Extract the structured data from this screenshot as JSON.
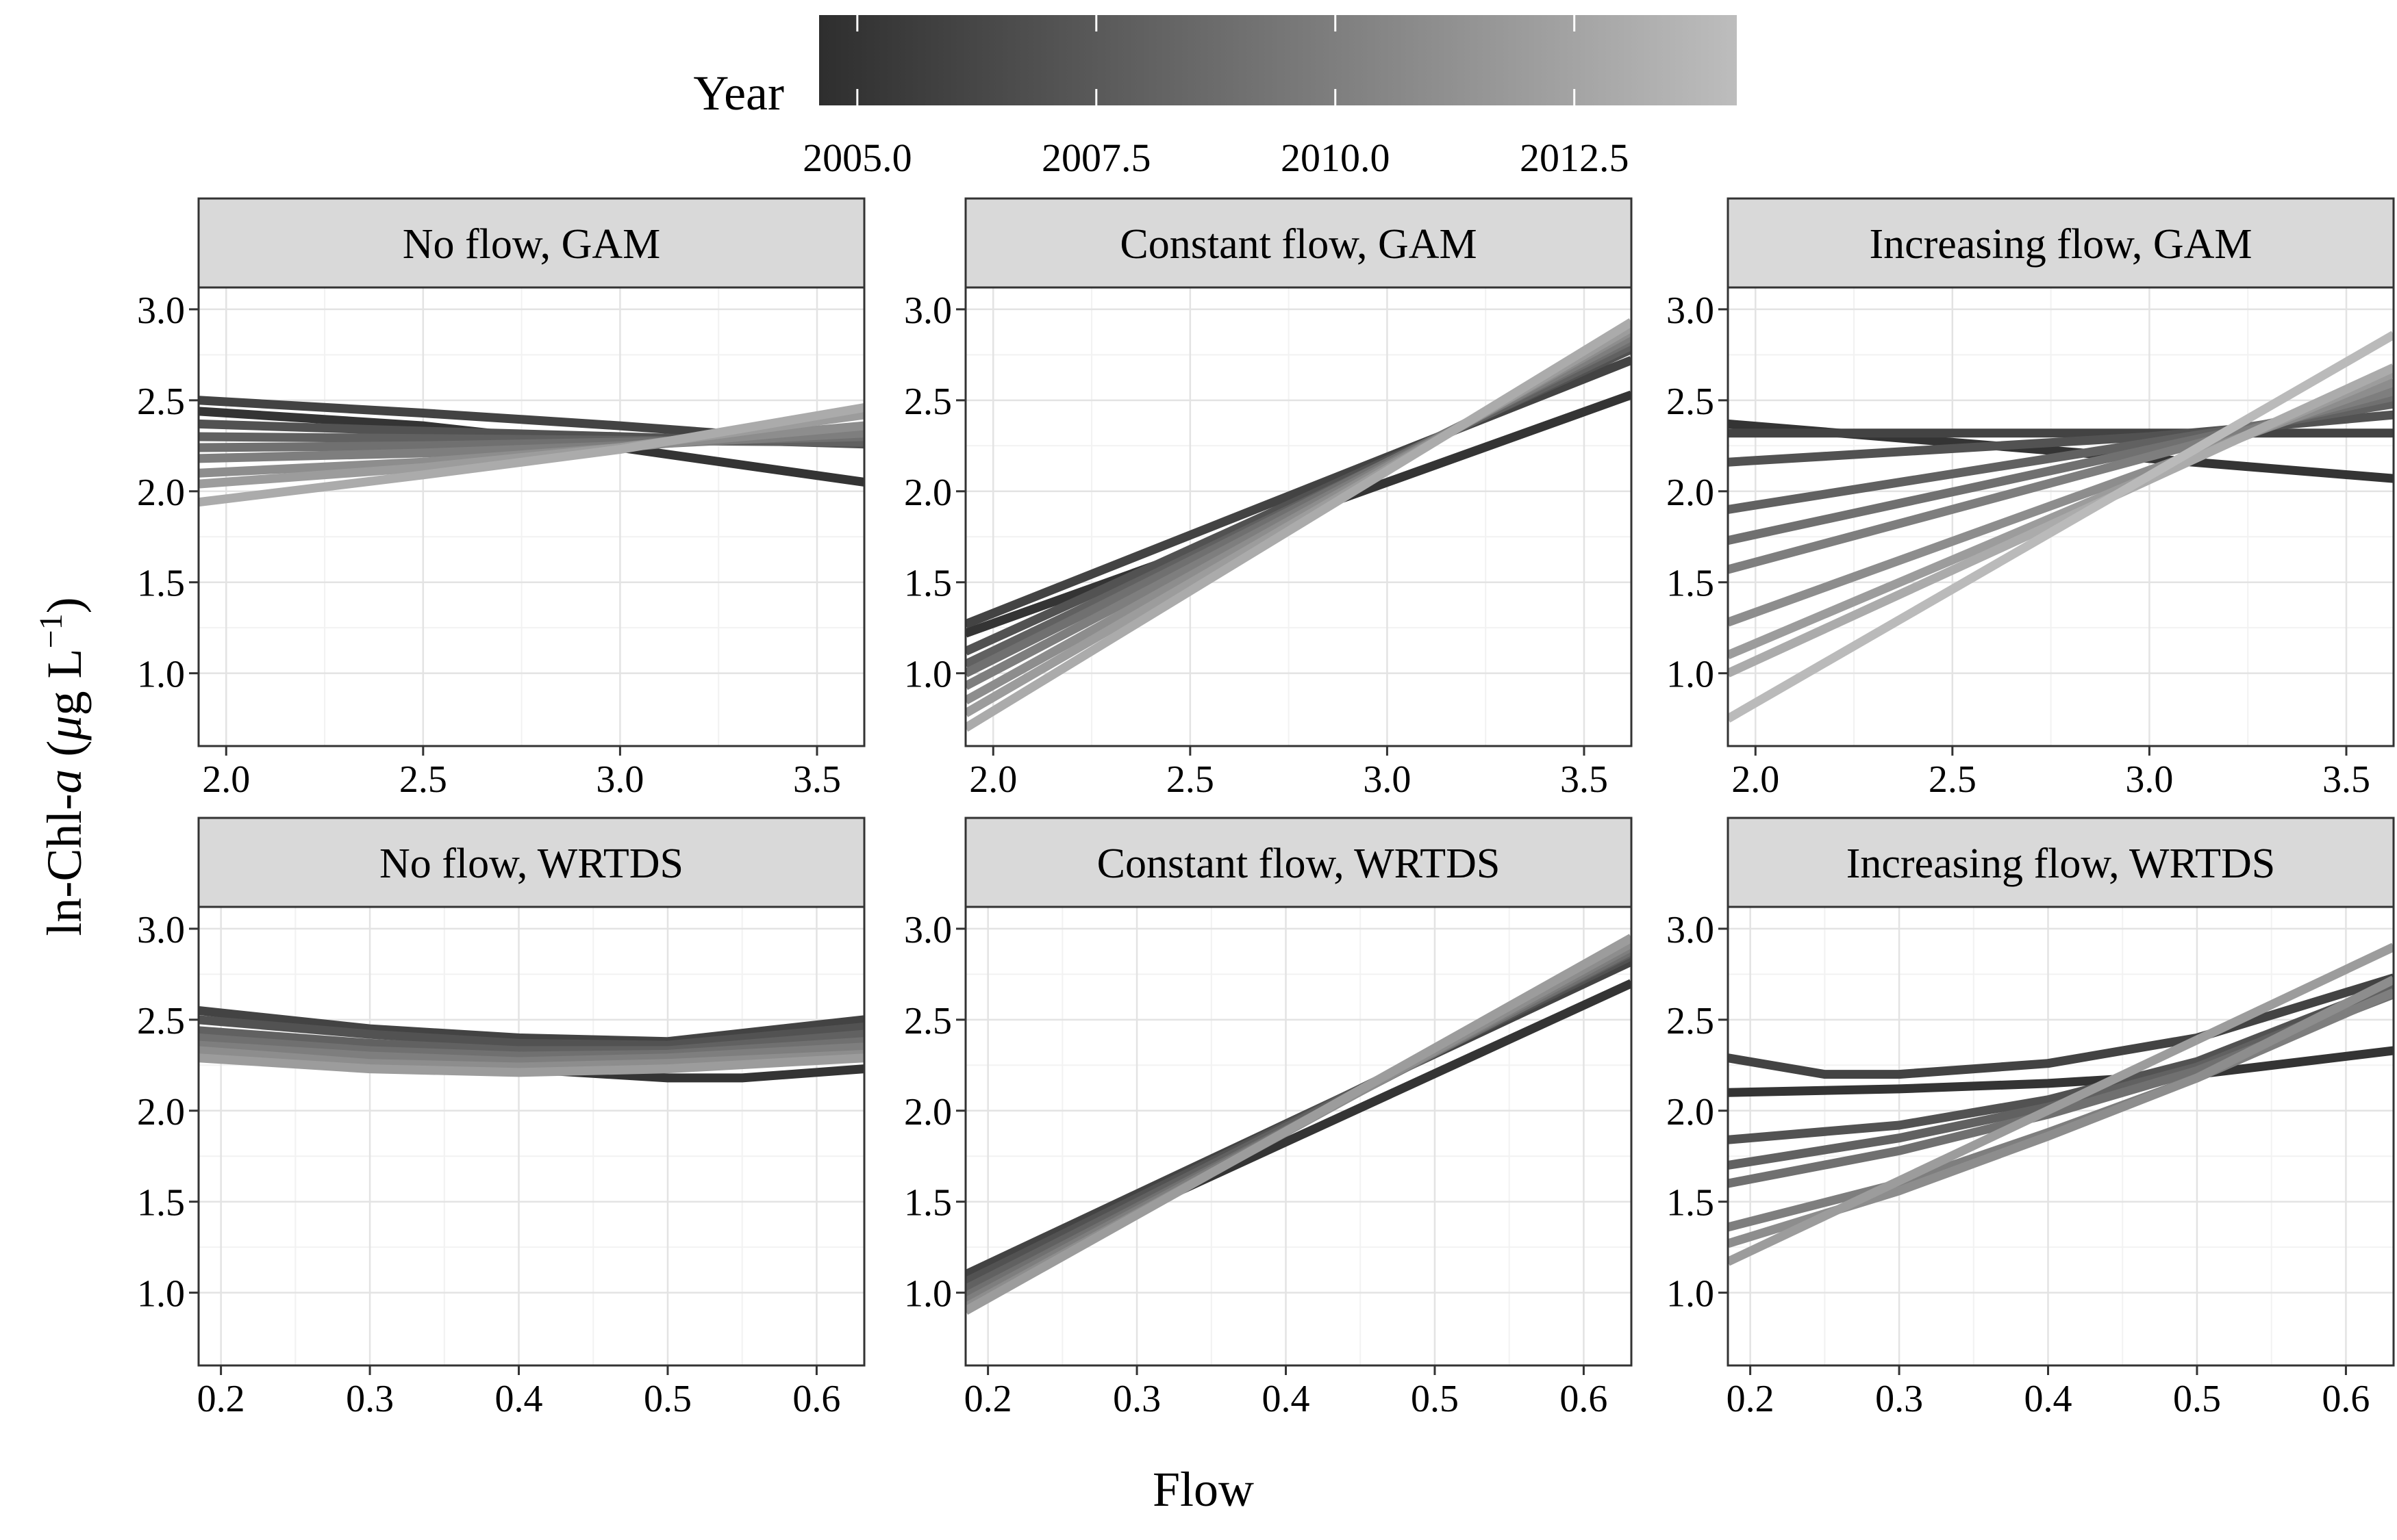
{
  "legend": {
    "title": "Year",
    "ticks": [
      "2005.0",
      "2007.5",
      "2010.0",
      "2012.5"
    ],
    "tick_values": [
      2005.0,
      2007.5,
      2010.0,
      2012.5
    ],
    "range": [
      2004.6,
      2014.2
    ],
    "color_low": "#2e2e2e",
    "color_high": "#bdbdbd"
  },
  "axes": {
    "ylabel_prefix": "ln-Chl-",
    "ylabel_italic": "a",
    "ylabel_open": " (",
    "ylabel_mu": "μ",
    "ylabel_unit": "g L",
    "ylabel_sup": "−1",
    "ylabel_close": ")",
    "xlabel": "Flow"
  },
  "chart_data": [
    {
      "type": "line",
      "title": "No flow, GAM",
      "xlim": [
        1.93,
        3.62
      ],
      "ylim": [
        0.6,
        3.12
      ],
      "xticks": [
        "2.0",
        "2.5",
        "3.0",
        "3.5"
      ],
      "xtick_values": [
        2.0,
        2.5,
        3.0,
        3.5
      ],
      "yticks": [
        "1.0",
        "1.5",
        "2.0",
        "2.5",
        "3.0"
      ],
      "ytick_values": [
        1.0,
        1.5,
        2.0,
        2.5,
        3.0
      ],
      "series": [
        {
          "year": 2005,
          "x": [
            1.93,
            2.5,
            3.0,
            3.62
          ],
          "y": [
            2.44,
            2.36,
            2.24,
            2.05
          ]
        },
        {
          "year": 2006,
          "x": [
            1.93,
            2.5,
            3.0,
            3.62
          ],
          "y": [
            2.5,
            2.43,
            2.36,
            2.26
          ]
        },
        {
          "year": 2007,
          "x": [
            1.93,
            2.5,
            3.0,
            3.62
          ],
          "y": [
            2.37,
            2.33,
            2.3,
            2.26
          ]
        },
        {
          "year": 2008,
          "x": [
            1.93,
            2.5,
            3.0,
            3.62
          ],
          "y": [
            2.3,
            2.29,
            2.28,
            2.27
          ]
        },
        {
          "year": 2009,
          "x": [
            1.93,
            2.5,
            3.0,
            3.62
          ],
          "y": [
            2.24,
            2.25,
            2.27,
            2.3
          ]
        },
        {
          "year": 2010,
          "x": [
            1.93,
            2.5,
            3.0,
            3.62
          ],
          "y": [
            2.18,
            2.21,
            2.25,
            2.32
          ]
        },
        {
          "year": 2011,
          "x": [
            1.93,
            2.5,
            3.0,
            3.62
          ],
          "y": [
            2.1,
            2.16,
            2.24,
            2.36
          ]
        },
        {
          "year": 2012,
          "x": [
            1.93,
            2.5,
            3.0,
            3.62
          ],
          "y": [
            2.04,
            2.13,
            2.24,
            2.42
          ]
        },
        {
          "year": 2013,
          "x": [
            1.93,
            2.5,
            3.0,
            3.62
          ],
          "y": [
            1.94,
            2.09,
            2.23,
            2.46
          ]
        }
      ]
    },
    {
      "type": "line",
      "title": "Constant flow, GAM",
      "xlim": [
        1.93,
        3.62
      ],
      "ylim": [
        0.6,
        3.12
      ],
      "xticks": [
        "2.0",
        "2.5",
        "3.0",
        "3.5"
      ],
      "xtick_values": [
        2.0,
        2.5,
        3.0,
        3.5
      ],
      "yticks": [
        "1.0",
        "1.5",
        "2.0",
        "2.5",
        "3.0"
      ],
      "ytick_values": [
        1.0,
        1.5,
        2.0,
        2.5,
        3.0
      ],
      "series": [
        {
          "year": 2005,
          "x": [
            1.93,
            3.62
          ],
          "y": [
            1.22,
            2.53
          ]
        },
        {
          "year": 2006,
          "x": [
            1.93,
            3.62
          ],
          "y": [
            1.27,
            2.72
          ]
        },
        {
          "year": 2007,
          "x": [
            1.93,
            3.62
          ],
          "y": [
            1.12,
            2.78
          ]
        },
        {
          "year": 2008,
          "x": [
            1.93,
            3.62
          ],
          "y": [
            1.05,
            2.8
          ]
        },
        {
          "year": 2009,
          "x": [
            1.93,
            3.62
          ],
          "y": [
            1.0,
            2.83
          ]
        },
        {
          "year": 2010,
          "x": [
            1.93,
            3.62
          ],
          "y": [
            0.93,
            2.85
          ]
        },
        {
          "year": 2011,
          "x": [
            1.93,
            3.62
          ],
          "y": [
            0.85,
            2.88
          ]
        },
        {
          "year": 2012,
          "x": [
            1.93,
            3.62
          ],
          "y": [
            0.78,
            2.9
          ]
        },
        {
          "year": 2013,
          "x": [
            1.93,
            3.62
          ],
          "y": [
            0.7,
            2.93
          ]
        }
      ]
    },
    {
      "type": "line",
      "title": "Increasing flow, GAM",
      "xlim": [
        1.93,
        3.62
      ],
      "ylim": [
        0.6,
        3.12
      ],
      "xticks": [
        "2.0",
        "2.5",
        "3.0",
        "3.5"
      ],
      "xtick_values": [
        2.0,
        2.5,
        3.0,
        3.5
      ],
      "yticks": [
        "1.0",
        "1.5",
        "2.0",
        "2.5",
        "3.0"
      ],
      "ytick_values": [
        1.0,
        1.5,
        2.0,
        2.5,
        3.0
      ],
      "series": [
        {
          "year": 2005,
          "x": [
            1.93,
            3.62
          ],
          "y": [
            2.37,
            2.07
          ]
        },
        {
          "year": 2006,
          "x": [
            1.93,
            3.62
          ],
          "y": [
            2.32,
            2.32
          ]
        },
        {
          "year": 2007,
          "x": [
            1.93,
            3.0,
            3.62
          ],
          "y": [
            2.16,
            2.3,
            2.42
          ]
        },
        {
          "year": 2008,
          "x": [
            1.93,
            3.62
          ],
          "y": [
            1.9,
            2.48
          ]
        },
        {
          "year": 2009,
          "x": [
            1.93,
            3.62
          ],
          "y": [
            1.73,
            2.52
          ]
        },
        {
          "year": 2010,
          "x": [
            1.93,
            3.62
          ],
          "y": [
            1.57,
            2.55
          ]
        },
        {
          "year": 2011,
          "x": [
            1.93,
            3.62
          ],
          "y": [
            1.28,
            2.6
          ]
        },
        {
          "year": 2012,
          "x": [
            1.93,
            3.62
          ],
          "y": [
            1.1,
            2.65
          ]
        },
        {
          "year": 2013,
          "x": [
            1.93,
            3.62
          ],
          "y": [
            1.0,
            2.68
          ]
        },
        {
          "year": 2014,
          "x": [
            1.93,
            3.62
          ],
          "y": [
            0.75,
            2.86
          ]
        }
      ]
    },
    {
      "type": "line",
      "title": "No flow, WRTDS",
      "xlim": [
        0.185,
        0.632
      ],
      "ylim": [
        0.6,
        3.12
      ],
      "xticks": [
        "0.2",
        "0.3",
        "0.4",
        "0.5",
        "0.6"
      ],
      "xtick_values": [
        0.2,
        0.3,
        0.4,
        0.5,
        0.6
      ],
      "yticks": [
        "1.0",
        "1.5",
        "2.0",
        "2.5",
        "3.0"
      ],
      "ytick_values": [
        1.0,
        1.5,
        2.0,
        2.5,
        3.0
      ],
      "series": [
        {
          "year": 2005,
          "x": [
            0.185,
            0.3,
            0.4,
            0.5,
            0.55,
            0.632
          ],
          "y": [
            2.43,
            2.31,
            2.23,
            2.18,
            2.18,
            2.23
          ]
        },
        {
          "year": 2006,
          "x": [
            0.185,
            0.3,
            0.4,
            0.5,
            0.632
          ],
          "y": [
            2.55,
            2.45,
            2.4,
            2.38,
            2.5
          ]
        },
        {
          "year": 2007,
          "x": [
            0.185,
            0.3,
            0.4,
            0.5,
            0.632
          ],
          "y": [
            2.5,
            2.42,
            2.37,
            2.36,
            2.46
          ]
        },
        {
          "year": 2008,
          "x": [
            0.185,
            0.3,
            0.4,
            0.5,
            0.632
          ],
          "y": [
            2.44,
            2.37,
            2.33,
            2.33,
            2.42
          ]
        },
        {
          "year": 2009,
          "x": [
            0.185,
            0.3,
            0.4,
            0.5,
            0.632
          ],
          "y": [
            2.4,
            2.33,
            2.3,
            2.31,
            2.38
          ]
        },
        {
          "year": 2010,
          "x": [
            0.185,
            0.3,
            0.4,
            0.5,
            0.632
          ],
          "y": [
            2.36,
            2.3,
            2.27,
            2.29,
            2.35
          ]
        },
        {
          "year": 2011,
          "x": [
            0.185,
            0.3,
            0.4,
            0.5,
            0.632
          ],
          "y": [
            2.33,
            2.26,
            2.24,
            2.26,
            2.31
          ]
        },
        {
          "year": 2012,
          "x": [
            0.185,
            0.3,
            0.4,
            0.5,
            0.632
          ],
          "y": [
            2.29,
            2.23,
            2.21,
            2.23,
            2.29
          ]
        }
      ]
    },
    {
      "type": "line",
      "title": "Constant flow, WRTDS",
      "xlim": [
        0.185,
        0.632
      ],
      "ylim": [
        0.6,
        3.12
      ],
      "xticks": [
        "0.2",
        "0.3",
        "0.4",
        "0.5",
        "0.6"
      ],
      "xtick_values": [
        0.2,
        0.3,
        0.4,
        0.5,
        0.6
      ],
      "yticks": [
        "1.0",
        "1.5",
        "2.0",
        "2.5",
        "3.0"
      ],
      "ytick_values": [
        1.0,
        1.5,
        2.0,
        2.5,
        3.0
      ],
      "series": [
        {
          "year": 2005,
          "x": [
            0.185,
            0.632
          ],
          "y": [
            1.02,
            2.7
          ]
        },
        {
          "year": 2006,
          "x": [
            0.185,
            0.632
          ],
          "y": [
            1.1,
            2.82
          ]
        },
        {
          "year": 2007,
          "x": [
            0.185,
            0.632
          ],
          "y": [
            1.06,
            2.85
          ]
        },
        {
          "year": 2008,
          "x": [
            0.185,
            0.632
          ],
          "y": [
            1.02,
            2.87
          ]
        },
        {
          "year": 2009,
          "x": [
            0.185,
            0.632
          ],
          "y": [
            0.98,
            2.88
          ]
        },
        {
          "year": 2010,
          "x": [
            0.185,
            0.632
          ],
          "y": [
            0.95,
            2.9
          ]
        },
        {
          "year": 2011,
          "x": [
            0.185,
            0.632
          ],
          "y": [
            0.92,
            2.92
          ]
        },
        {
          "year": 2012,
          "x": [
            0.185,
            0.632
          ],
          "y": [
            0.9,
            2.95
          ]
        }
      ]
    },
    {
      "type": "line",
      "title": "Increasing flow, WRTDS",
      "xlim": [
        0.185,
        0.632
      ],
      "ylim": [
        0.6,
        3.12
      ],
      "xticks": [
        "0.2",
        "0.3",
        "0.4",
        "0.5",
        "0.6"
      ],
      "xtick_values": [
        0.2,
        0.3,
        0.4,
        0.5,
        0.6
      ],
      "yticks": [
        "1.0",
        "1.5",
        "2.0",
        "2.5",
        "3.0"
      ],
      "ytick_values": [
        1.0,
        1.5,
        2.0,
        2.5,
        3.0
      ],
      "series": [
        {
          "year": 2005,
          "x": [
            0.185,
            0.3,
            0.4,
            0.5,
            0.632
          ],
          "y": [
            2.1,
            2.12,
            2.15,
            2.2,
            2.33
          ]
        },
        {
          "year": 2006,
          "x": [
            0.185,
            0.25,
            0.3,
            0.4,
            0.5,
            0.632
          ],
          "y": [
            2.29,
            2.2,
            2.2,
            2.26,
            2.4,
            2.73
          ]
        },
        {
          "year": 2007,
          "x": [
            0.185,
            0.3,
            0.4,
            0.5,
            0.632
          ],
          "y": [
            1.84,
            1.92,
            2.06,
            2.27,
            2.69
          ]
        },
        {
          "year": 2008,
          "x": [
            0.185,
            0.3,
            0.4,
            0.5,
            0.632
          ],
          "y": [
            1.7,
            1.85,
            2.02,
            2.24,
            2.67
          ]
        },
        {
          "year": 2009,
          "x": [
            0.185,
            0.3,
            0.4,
            0.5,
            0.632
          ],
          "y": [
            1.6,
            1.78,
            1.98,
            2.22,
            2.64
          ]
        },
        {
          "year": 2010,
          "x": [
            0.185,
            0.3,
            0.4,
            0.5,
            0.632
          ],
          "y": [
            1.36,
            1.6,
            1.88,
            2.18,
            2.65
          ]
        },
        {
          "year": 2011,
          "x": [
            0.185,
            0.3,
            0.4,
            0.5,
            0.632
          ],
          "y": [
            1.27,
            1.56,
            1.86,
            2.18,
            2.72
          ]
        },
        {
          "year": 2012,
          "x": [
            0.185,
            0.632
          ],
          "y": [
            1.17,
            2.9
          ]
        }
      ]
    }
  ]
}
